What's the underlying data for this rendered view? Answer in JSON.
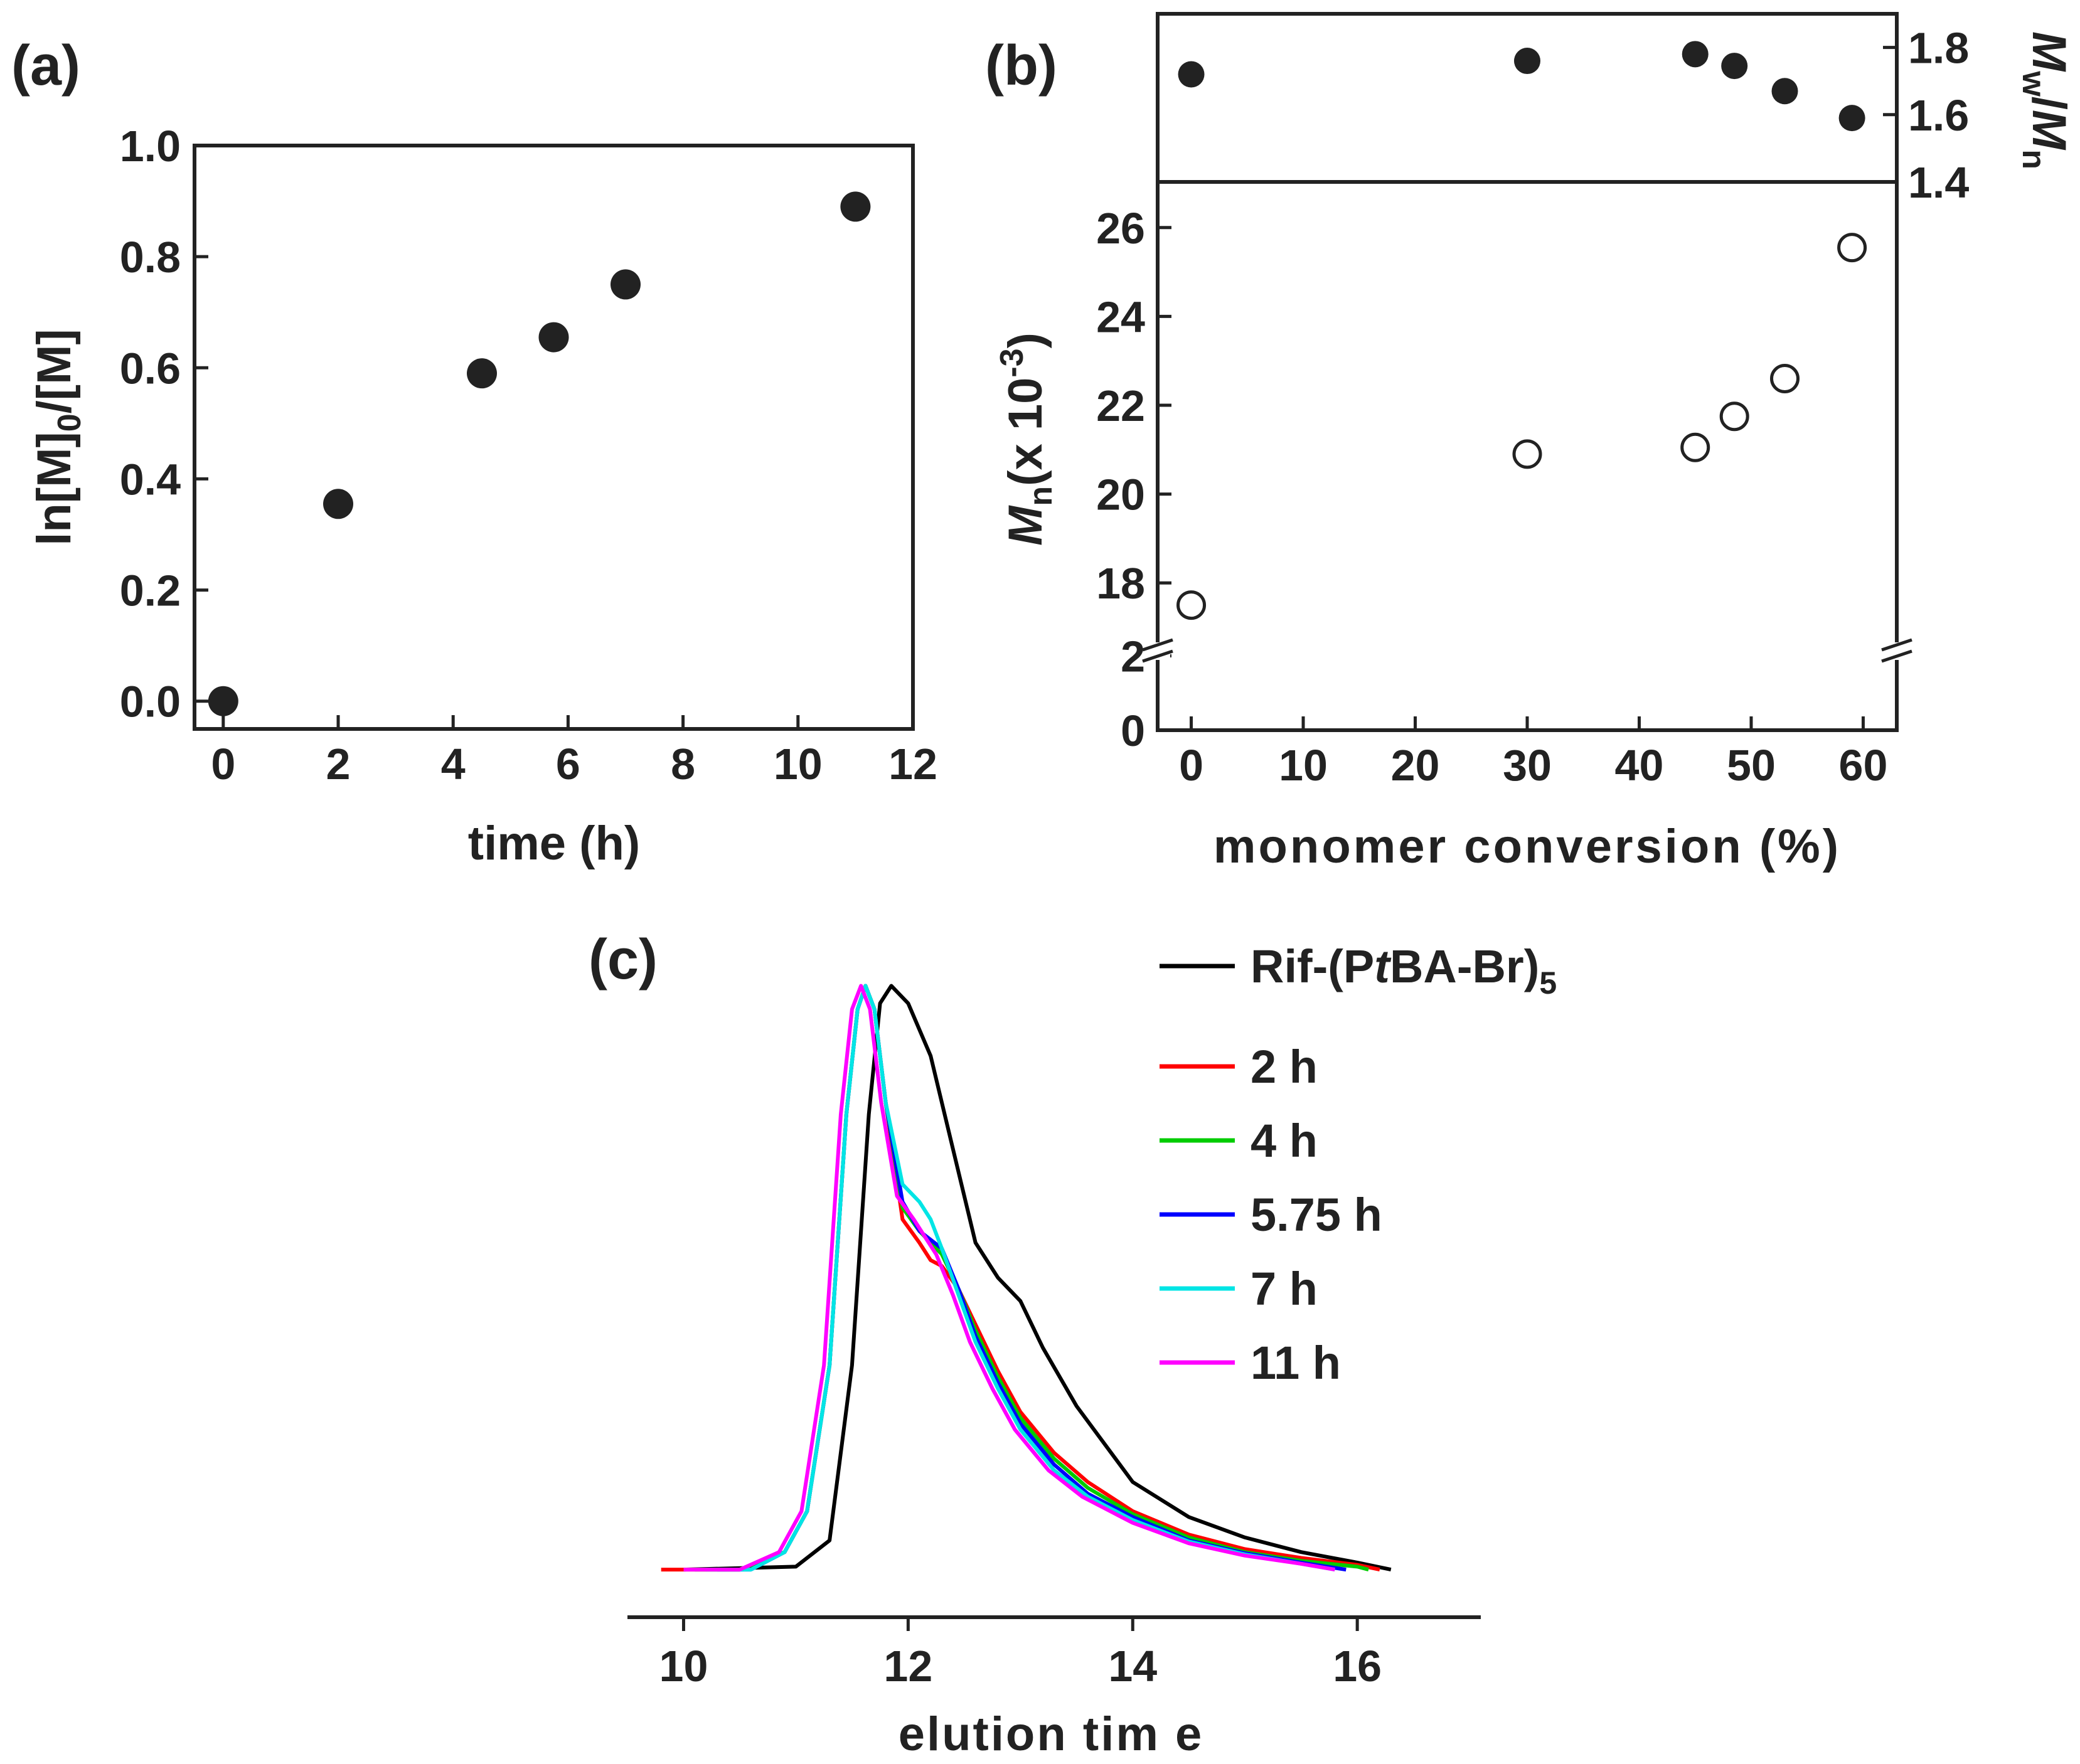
{
  "figure": {
    "colors": {
      "ink": "#222222",
      "background": "#ffffff"
    }
  },
  "chart_data": [
    {
      "id": "a",
      "panel_label": "(a)",
      "type": "scatter",
      "xlabel": "time (h)",
      "ylabel": "ln[M]0/[M]",
      "ylabel_parts": {
        "main": "ln[M]",
        "sub": "0",
        "rest": "/[M]"
      },
      "xlim": [
        -0.5,
        12
      ],
      "ylim": [
        -0.05,
        1.0
      ],
      "xticks": [
        0,
        2,
        4,
        6,
        8,
        10,
        12
      ],
      "yticks": [
        0.0,
        0.2,
        0.4,
        0.6,
        0.8,
        1.0
      ],
      "ytick_labels": [
        "0.0",
        "0.2",
        "0.4",
        "0.6",
        "0.8",
        "1.0"
      ],
      "marker": "filled-circle",
      "points": [
        {
          "x": 0,
          "y": 0.0
        },
        {
          "x": 2,
          "y": 0.355
        },
        {
          "x": 4.5,
          "y": 0.59
        },
        {
          "x": 5.75,
          "y": 0.655
        },
        {
          "x": 7,
          "y": 0.75
        },
        {
          "x": 11,
          "y": 0.89
        }
      ]
    },
    {
      "id": "b",
      "panel_label": "(b)",
      "type": "scatter",
      "xlabel": "monomer conversion (%)",
      "xlim": [
        -3,
        63
      ],
      "xticks": [
        0,
        10,
        20,
        30,
        40,
        50,
        60
      ],
      "top": {
        "ylabel": "Mw/Mn",
        "ylabel_parts": {
          "m1": "M",
          "s1": "w",
          "slash": "/",
          "m2": "M",
          "s2": "n"
        },
        "ylim": [
          1.4,
          1.9
        ],
        "yticks": [
          1.4,
          1.6,
          1.8
        ],
        "ytick_labels": [
          "1.4",
          "1.6",
          "1.8"
        ],
        "marker": "filled-circle",
        "points": [
          {
            "x": 0,
            "y": 1.72
          },
          {
            "x": 30,
            "y": 1.76
          },
          {
            "x": 45,
            "y": 1.78
          },
          {
            "x": 48.5,
            "y": 1.745
          },
          {
            "x": 53,
            "y": 1.67
          },
          {
            "x": 59,
            "y": 1.59
          }
        ]
      },
      "bottom": {
        "ylabel": "Mn(x 10-3)",
        "ylabel_parts": {
          "m": "M",
          "s": "n",
          "rest": "(x 10",
          "sup": "-3",
          "close": ")"
        },
        "break_between": [
          2,
          17
        ],
        "lower_ylim": [
          0,
          2.6
        ],
        "lower_yticks": [
          0,
          2
        ],
        "upper_ylim": [
          17,
          27
        ],
        "upper_yticks": [
          18,
          20,
          22,
          24,
          26
        ],
        "marker": "open-circle",
        "points": [
          {
            "x": 0,
            "y": 17.5
          },
          {
            "x": 30,
            "y": 20.9
          },
          {
            "x": 45,
            "y": 21.05
          },
          {
            "x": 48.5,
            "y": 21.75
          },
          {
            "x": 53,
            "y": 22.6
          },
          {
            "x": 59,
            "y": 25.55
          }
        ]
      }
    },
    {
      "id": "c",
      "panel_label": "(c)",
      "type": "line",
      "xlabel": "elution tim e",
      "xlim": [
        9.5,
        17.1
      ],
      "ylim": [
        -0.03,
        1.05
      ],
      "xticks": [
        10,
        12,
        14,
        16
      ],
      "series": [
        {
          "name": "Rif-(PtBA-Br)5",
          "label_parts": {
            "a": "Rif-(P",
            "italic": "t",
            "b": "BA-Br)",
            "sub": "5"
          },
          "color": "#000000",
          "peak_shift": 0.25,
          "x": [
            10.0,
            11.0,
            11.3,
            11.5,
            11.65,
            11.75,
            11.85,
            12.0,
            12.2,
            12.4,
            12.6,
            12.8,
            13.0,
            13.2,
            13.5,
            14.0,
            14.5,
            15.0,
            15.5,
            16.0,
            16.3
          ],
          "y": [
            0.0,
            0.005,
            0.05,
            0.35,
            0.78,
            0.97,
            1.0,
            0.97,
            0.88,
            0.72,
            0.56,
            0.5,
            0.46,
            0.38,
            0.28,
            0.15,
            0.09,
            0.055,
            0.03,
            0.012,
            0.0
          ]
        },
        {
          "name": "2 h",
          "color": "#ff0000",
          "x": [
            9.8,
            10.5,
            10.9,
            11.1,
            11.3,
            11.45,
            11.55,
            11.62,
            11.7,
            11.8,
            11.95,
            12.1,
            12.2,
            12.3,
            12.45,
            12.6,
            12.8,
            13.0,
            13.3,
            13.6,
            14.0,
            14.5,
            15.0,
            15.5,
            16.0,
            16.2
          ],
          "y": [
            0.0,
            0.0,
            0.03,
            0.1,
            0.35,
            0.78,
            0.96,
            1.0,
            0.96,
            0.8,
            0.6,
            0.56,
            0.53,
            0.52,
            0.48,
            0.42,
            0.34,
            0.27,
            0.2,
            0.15,
            0.1,
            0.06,
            0.035,
            0.02,
            0.008,
            0.0
          ]
        },
        {
          "name": "4 h",
          "color": "#00cc00",
          "x": [
            10.1,
            10.5,
            10.9,
            11.1,
            11.3,
            11.45,
            11.55,
            11.62,
            11.7,
            11.8,
            11.95,
            12.1,
            12.2,
            12.3,
            12.45,
            12.6,
            12.8,
            13.0,
            13.3,
            13.6,
            14.0,
            14.5,
            15.0,
            15.5,
            16.0,
            16.1
          ],
          "y": [
            0.0,
            0.0,
            0.03,
            0.1,
            0.35,
            0.78,
            0.96,
            1.0,
            0.96,
            0.8,
            0.62,
            0.58,
            0.56,
            0.54,
            0.48,
            0.41,
            0.33,
            0.26,
            0.19,
            0.14,
            0.095,
            0.055,
            0.03,
            0.015,
            0.005,
            0.0
          ]
        },
        {
          "name": "5.75 h",
          "color": "#0000ff",
          "x": [
            10.3,
            10.6,
            10.9,
            11.1,
            11.3,
            11.45,
            11.55,
            11.62,
            11.7,
            11.8,
            11.95,
            12.1,
            12.2,
            12.3,
            12.45,
            12.6,
            12.8,
            13.0,
            13.3,
            13.6,
            14.0,
            14.5,
            15.0,
            15.5,
            15.9
          ],
          "y": [
            0.0,
            0.0,
            0.03,
            0.1,
            0.35,
            0.78,
            0.96,
            1.0,
            0.96,
            0.8,
            0.63,
            0.58,
            0.565,
            0.55,
            0.48,
            0.4,
            0.32,
            0.25,
            0.18,
            0.13,
            0.09,
            0.05,
            0.028,
            0.012,
            0.0
          ]
        },
        {
          "name": "7 h",
          "color": "#00e5e5",
          "x": [
            10.2,
            10.6,
            10.9,
            11.1,
            11.3,
            11.45,
            11.55,
            11.62,
            11.7,
            11.8,
            11.95,
            12.1,
            12.2,
            12.3,
            12.45,
            12.6,
            12.8,
            13.0,
            13.3,
            13.6,
            14.0,
            14.5,
            15.0,
            15.5,
            15.8
          ],
          "y": [
            0.0,
            0.0,
            0.03,
            0.1,
            0.35,
            0.78,
            0.96,
            1.0,
            0.96,
            0.8,
            0.66,
            0.63,
            0.6,
            0.55,
            0.47,
            0.39,
            0.31,
            0.24,
            0.17,
            0.125,
            0.085,
            0.048,
            0.026,
            0.01,
            0.0
          ]
        },
        {
          "name": "11 h",
          "color": "#ff00ff",
          "x": [
            10.0,
            10.5,
            10.85,
            11.05,
            11.25,
            11.4,
            11.5,
            11.58,
            11.66,
            11.76,
            11.9,
            12.05,
            12.15,
            12.25,
            12.4,
            12.55,
            12.75,
            12.95,
            13.25,
            13.55,
            14.0,
            14.5,
            15.0,
            15.5,
            15.8
          ],
          "y": [
            0.0,
            0.0,
            0.03,
            0.1,
            0.35,
            0.78,
            0.96,
            1.0,
            0.96,
            0.8,
            0.64,
            0.6,
            0.57,
            0.54,
            0.47,
            0.39,
            0.31,
            0.24,
            0.17,
            0.125,
            0.08,
            0.045,
            0.024,
            0.01,
            0.0
          ]
        }
      ]
    }
  ]
}
